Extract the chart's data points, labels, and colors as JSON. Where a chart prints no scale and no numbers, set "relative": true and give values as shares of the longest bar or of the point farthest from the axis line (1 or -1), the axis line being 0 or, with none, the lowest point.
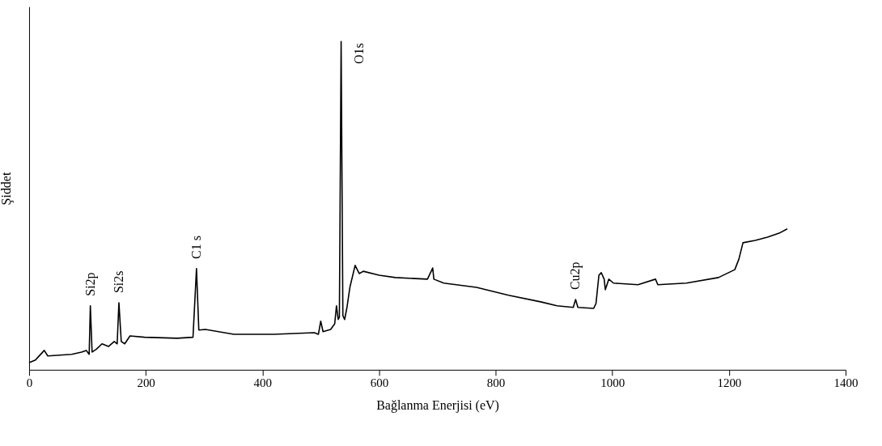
{
  "chart_data": {
    "type": "line",
    "relative": true,
    "xlabel": "Bağlanma Enerjisi (eV)",
    "ylabel": "Şiddet",
    "xlim": [
      0,
      1400
    ],
    "xticks": [
      0,
      200,
      400,
      600,
      800,
      1000,
      1200,
      1400
    ],
    "grid": false,
    "marker": "none",
    "line_style": "solid",
    "series": [
      {
        "color": "#000000",
        "x": [
          0,
          11,
          26,
          32,
          73,
          90,
          98,
          103,
          105,
          108,
          115,
          125,
          136,
          146,
          151,
          154,
          158,
          164,
          173,
          198,
          254,
          281,
          287,
          291,
          302,
          351,
          420,
          489,
          496,
          500,
          504,
          517,
          524,
          527,
          530,
          532,
          535,
          538,
          541,
          545,
          550,
          559,
          566,
          573,
          600,
          628,
          683,
          692,
          694,
          711,
          767,
          822,
          877,
          905,
          933,
          937,
          941,
          968,
          972,
          977,
          981,
          986,
          988,
          994,
          1002,
          1044,
          1074,
          1078,
          1127,
          1182,
          1210,
          1217,
          1224,
          1245,
          1266,
          1286,
          1300
        ],
        "values": [
          0.022,
          0.03,
          0.059,
          0.042,
          0.047,
          0.054,
          0.059,
          0.047,
          0.195,
          0.054,
          0.062,
          0.079,
          0.071,
          0.086,
          0.079,
          0.204,
          0.086,
          0.079,
          0.103,
          0.099,
          0.096,
          0.099,
          0.308,
          0.121,
          0.123,
          0.108,
          0.108,
          0.113,
          0.108,
          0.148,
          0.116,
          0.123,
          0.14,
          0.195,
          0.153,
          0.16,
          1,
          0.165,
          0.153,
          0.19,
          0.251,
          0.318,
          0.293,
          0.3,
          0.288,
          0.281,
          0.276,
          0.31,
          0.276,
          0.264,
          0.251,
          0.227,
          0.207,
          0.195,
          0.19,
          0.214,
          0.19,
          0.187,
          0.202,
          0.288,
          0.296,
          0.276,
          0.244,
          0.276,
          0.264,
          0.259,
          0.276,
          0.259,
          0.264,
          0.281,
          0.305,
          0.337,
          0.387,
          0.394,
          0.404,
          0.416,
          0.429
        ]
      }
    ],
    "annotations": [
      {
        "text": "Si2p",
        "x": 105,
        "y": 0.195
      },
      {
        "text": "Si2s",
        "x": 154,
        "y": 0.204
      },
      {
        "text": "C1 s",
        "x": 287,
        "y": 0.308
      },
      {
        "text": "O1s",
        "x": 535,
        "y": 1
      },
      {
        "text": "Cu2p",
        "x": 937,
        "y": 0.214
      }
    ]
  }
}
